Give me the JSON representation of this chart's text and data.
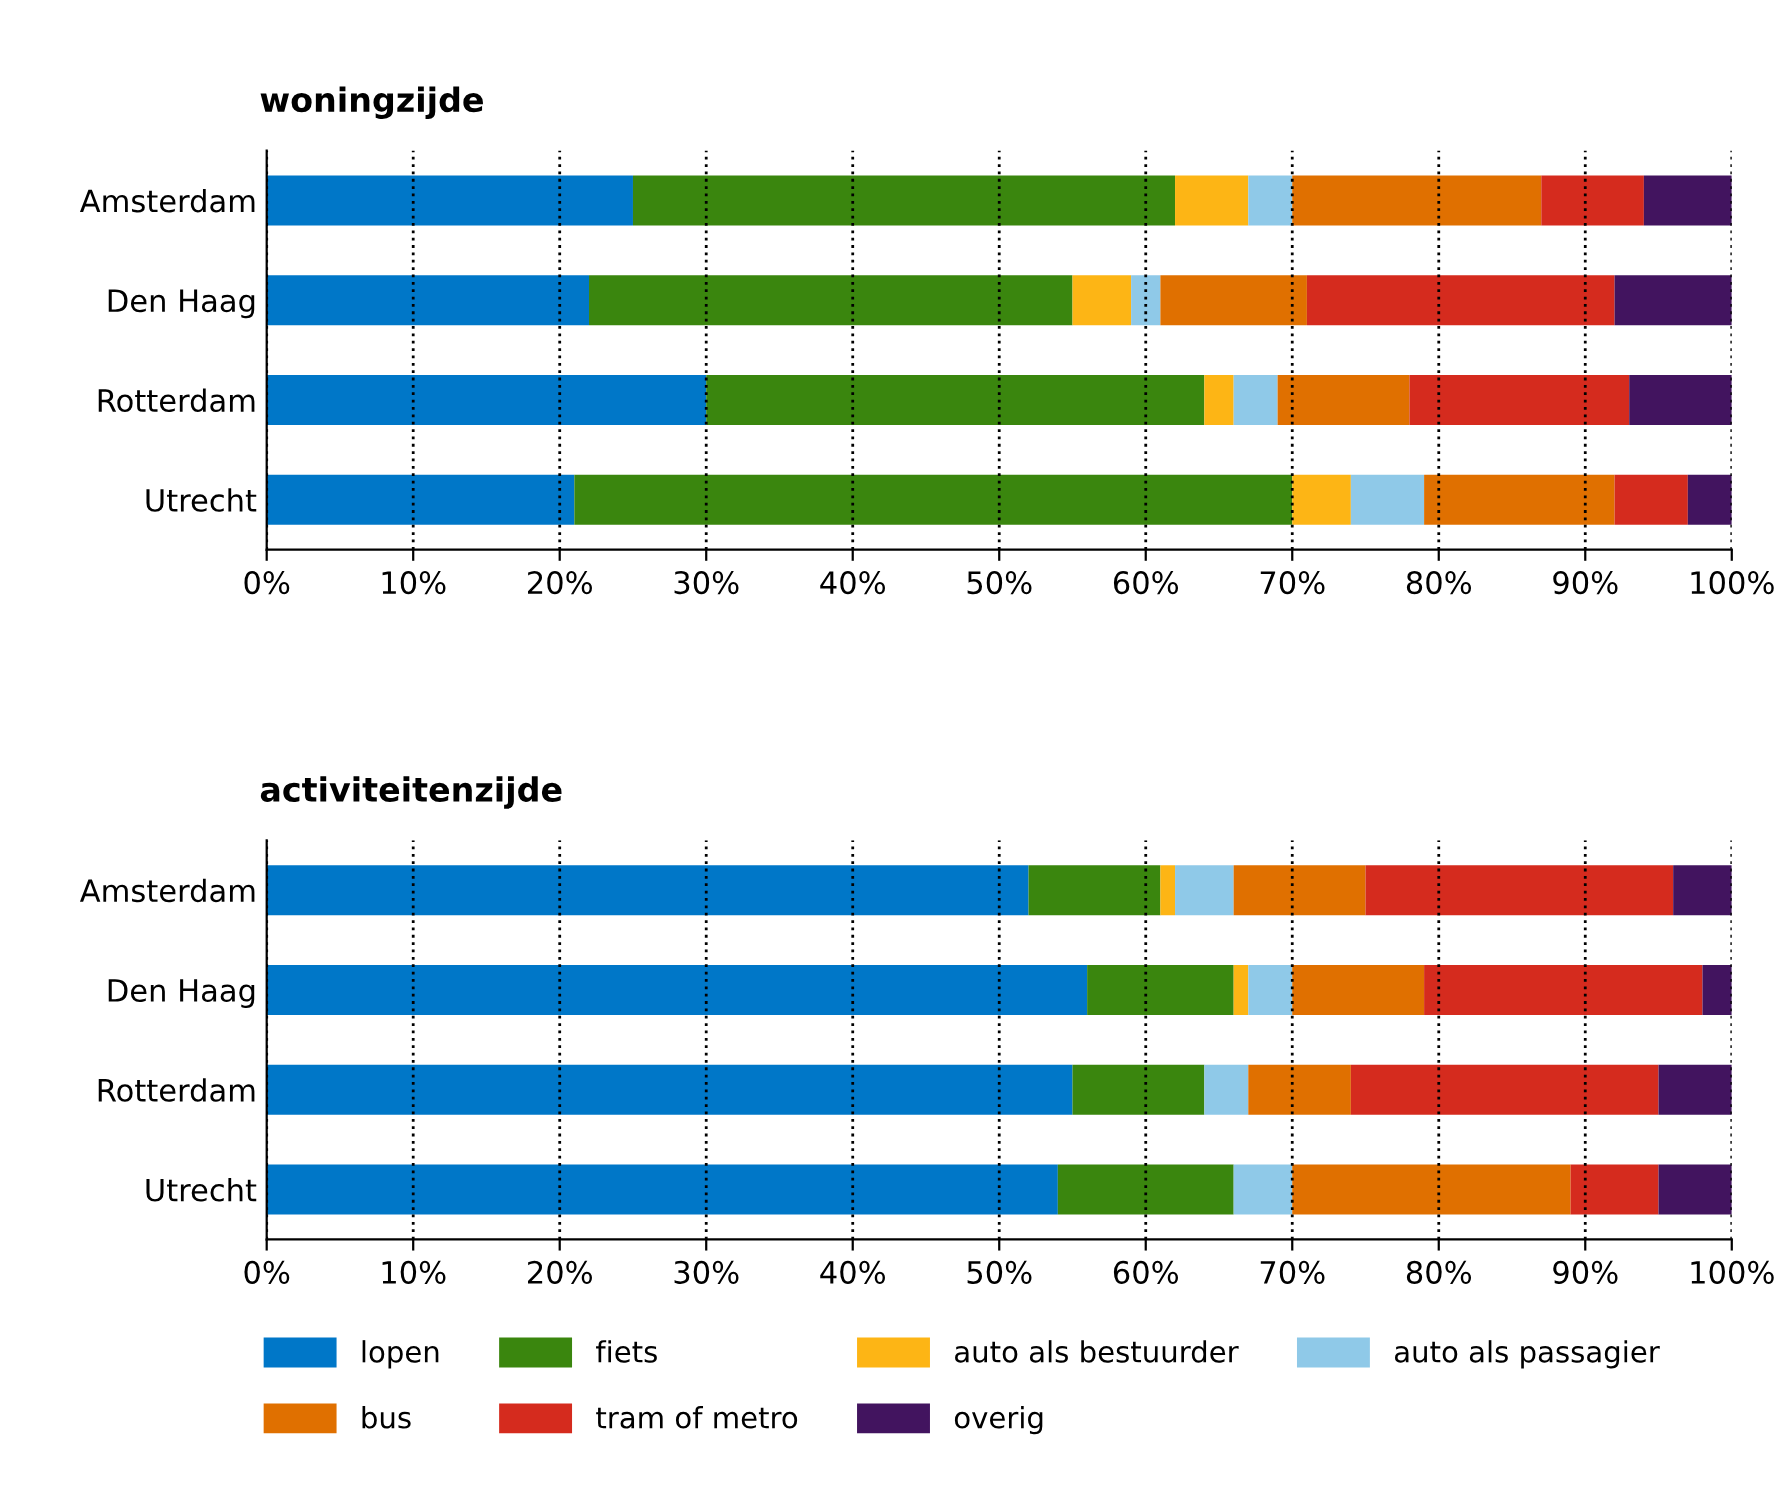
{
  "chart_data": [
    {
      "type": "bar",
      "title": "woningzijde",
      "orientation": "horizontal",
      "stacked": true,
      "categories": [
        "Amsterdam",
        "Den Haag",
        "Rotterdam",
        "Utrecht"
      ],
      "xlim": [
        0,
        100
      ],
      "xticks": [
        {
          "value": 0,
          "label": "0%"
        },
        {
          "value": 10,
          "label": "10%"
        },
        {
          "value": 20,
          "label": "20%"
        },
        {
          "value": 30,
          "label": "30%"
        },
        {
          "value": 40,
          "label": "40%"
        },
        {
          "value": 50,
          "label": "50%"
        },
        {
          "value": 60,
          "label": "60%"
        },
        {
          "value": 70,
          "label": "70%"
        },
        {
          "value": 80,
          "label": "80%"
        },
        {
          "value": 90,
          "label": "90%"
        },
        {
          "value": 100,
          "label": "100%"
        }
      ],
      "grid": "x",
      "line_style": "dotted",
      "legend": false,
      "series": [
        {
          "color": "#0077c8",
          "values": [
            25,
            22,
            30,
            21
          ]
        },
        {
          "color": "#3a860e",
          "values": [
            37,
            33,
            34,
            49
          ]
        },
        {
          "color": "#fdb515",
          "values": [
            5,
            4,
            2,
            4
          ]
        },
        {
          "color": "#8fc9e8",
          "values": [
            3,
            2,
            3,
            5
          ]
        },
        {
          "color": "#e07000",
          "values": [
            17,
            10,
            9,
            13
          ]
        },
        {
          "color": "#d52b1e",
          "values": [
            7,
            21,
            15,
            5
          ]
        },
        {
          "color": "#42145f",
          "values": [
            6,
            8,
            7,
            3
          ]
        }
      ]
    },
    {
      "type": "bar",
      "title": "activiteitenzijde",
      "orientation": "horizontal",
      "stacked": true,
      "categories": [
        "Amsterdam",
        "Den Haag",
        "Rotterdam",
        "Utrecht"
      ],
      "xlim": [
        0,
        100
      ],
      "xticks": [
        {
          "value": 0,
          "label": "0%"
        },
        {
          "value": 10,
          "label": "10%"
        },
        {
          "value": 20,
          "label": "20%"
        },
        {
          "value": 30,
          "label": "30%"
        },
        {
          "value": 40,
          "label": "40%"
        },
        {
          "value": 50,
          "label": "50%"
        },
        {
          "value": 60,
          "label": "60%"
        },
        {
          "value": 70,
          "label": "70%"
        },
        {
          "value": 80,
          "label": "80%"
        },
        {
          "value": 90,
          "label": "90%"
        },
        {
          "value": 100,
          "label": "100%"
        }
      ],
      "grid": "x",
      "line_style": "dotted",
      "legend": "bottom",
      "series": [
        {
          "name": "lopen",
          "color": "#0077c8",
          "values": [
            52,
            56,
            55,
            54
          ]
        },
        {
          "name": "fiets",
          "color": "#3a860e",
          "values": [
            9,
            10,
            9,
            12
          ]
        },
        {
          "name": "auto als bestuurder",
          "color": "#fdb515",
          "values": [
            1,
            1,
            0,
            0
          ]
        },
        {
          "name": "auto als passagier",
          "color": "#8fc9e8",
          "values": [
            4,
            3,
            3,
            4
          ]
        },
        {
          "name": "bus",
          "color": "#e07000",
          "values": [
            9,
            9,
            7,
            19
          ]
        },
        {
          "name": "tram of metro",
          "color": "#d52b1e",
          "values": [
            21,
            19,
            21,
            6
          ]
        },
        {
          "name": "overig",
          "color": "#42145f",
          "values": [
            4,
            2,
            5,
            5
          ]
        }
      ]
    }
  ]
}
